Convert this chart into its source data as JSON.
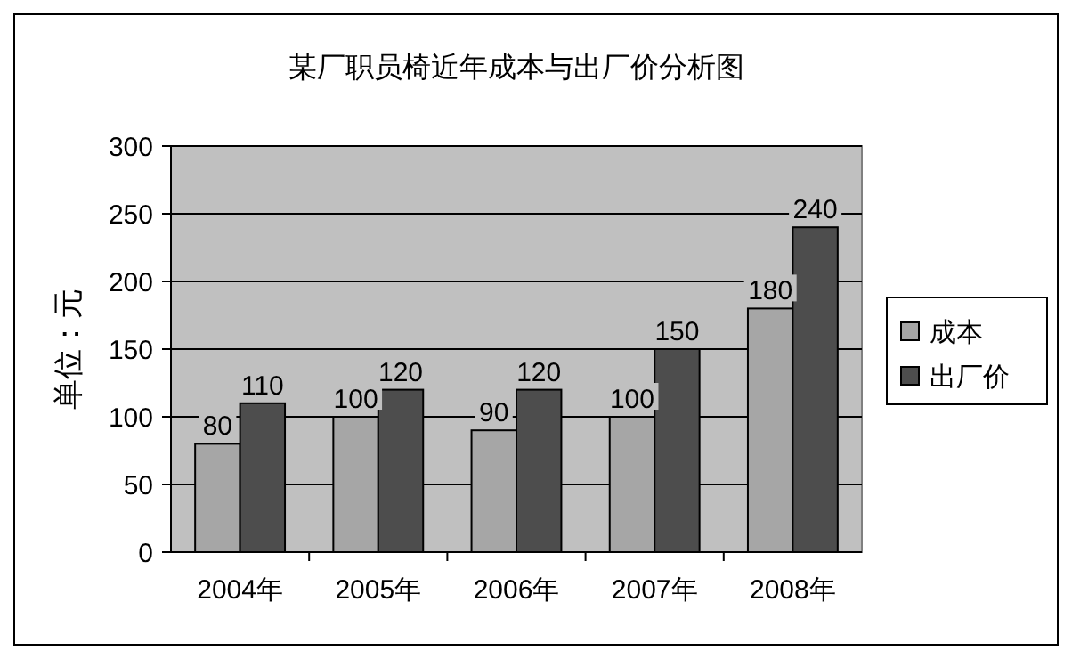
{
  "chart_data": {
    "type": "bar",
    "title": "某厂职员椅近年成本与出厂价分析图",
    "ylabel": "单位：元",
    "categories": [
      "2004年",
      "2005年",
      "2006年",
      "2007年",
      "2008年"
    ],
    "series": [
      {
        "name": "成本",
        "color": "#a6a6a6",
        "values": [
          80,
          100,
          90,
          100,
          180
        ]
      },
      {
        "name": "出厂价",
        "color": "#4d4d4d",
        "values": [
          110,
          120,
          120,
          150,
          240
        ]
      }
    ],
    "ylim": [
      0,
      300
    ],
    "yticks": [
      0,
      50,
      100,
      150,
      200,
      250,
      300
    ],
    "grid": "y",
    "legend": "right",
    "data_labels": true
  }
}
